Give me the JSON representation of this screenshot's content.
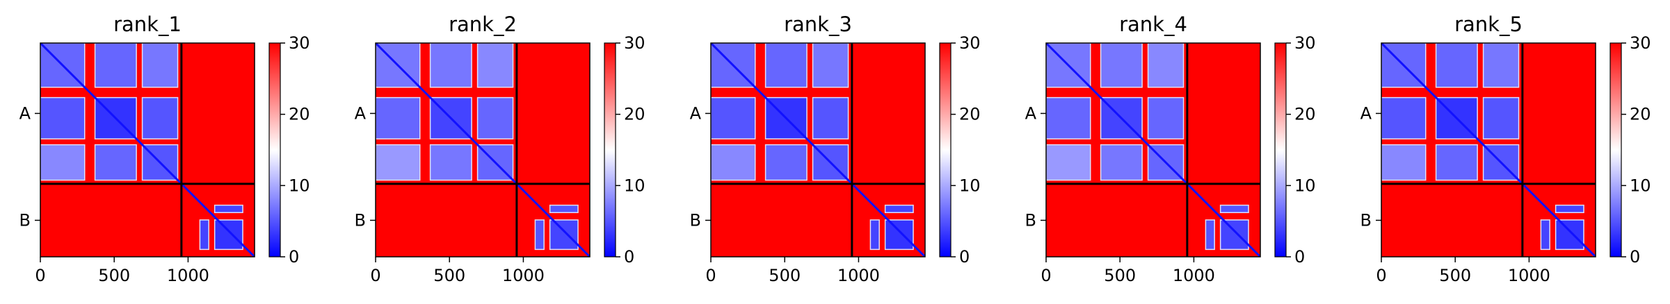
{
  "chart_data": {
    "type": "heatmap",
    "figure_kind": "predicted aligned error (PAE) matrices",
    "x_ticks": [
      0,
      500,
      1000
    ],
    "xlim": [
      0,
      1450
    ],
    "ylim": [
      1450,
      0
    ],
    "chains": [
      {
        "label": "A",
        "start": 0,
        "end": 955
      },
      {
        "label": "B",
        "start": 955,
        "end": 1450
      }
    ],
    "chain_boundary": 955,
    "colormap": {
      "name": "bwr",
      "vmin": 0,
      "vmax": 30,
      "low": "#0000ff",
      "mid": "#ffffff",
      "high": "#ff0000"
    },
    "colorbar_ticks": [
      0,
      10,
      20,
      30
    ],
    "panels": [
      {
        "title": "rank_1"
      },
      {
        "title": "rank_2"
      },
      {
        "title": "rank_3"
      },
      {
        "title": "rank_4"
      },
      {
        "title": "rank_5"
      }
    ],
    "low_error_regions": [
      {
        "x": [
          0,
          300
        ],
        "y": [
          0,
          300
        ],
        "value": 6
      },
      {
        "x": [
          0,
          300
        ],
        "y": [
          370,
          650
        ],
        "value": 5
      },
      {
        "x": [
          0,
          300
        ],
        "y": [
          690,
          930
        ],
        "value": 8
      },
      {
        "x": [
          370,
          650
        ],
        "y": [
          0,
          300
        ],
        "value": 6
      },
      {
        "x": [
          370,
          650
        ],
        "y": [
          370,
          650
        ],
        "value": 3
      },
      {
        "x": [
          370,
          650
        ],
        "y": [
          690,
          930
        ],
        "value": 6
      },
      {
        "x": [
          690,
          930
        ],
        "y": [
          0,
          300
        ],
        "value": 7
      },
      {
        "x": [
          690,
          930
        ],
        "y": [
          370,
          650
        ],
        "value": 5
      },
      {
        "x": [
          690,
          930
        ],
        "y": [
          690,
          930
        ],
        "value": 5
      },
      {
        "x": [
          1180,
          1370
        ],
        "y": [
          1100,
          1150
        ],
        "value": 4
      },
      {
        "x": [
          1080,
          1140
        ],
        "y": [
          1200,
          1400
        ],
        "value": 4
      },
      {
        "x": [
          1180,
          1370
        ],
        "y": [
          1200,
          1400
        ],
        "value": 3
      }
    ],
    "diagonal_value": 1,
    "background_value": 30
  }
}
